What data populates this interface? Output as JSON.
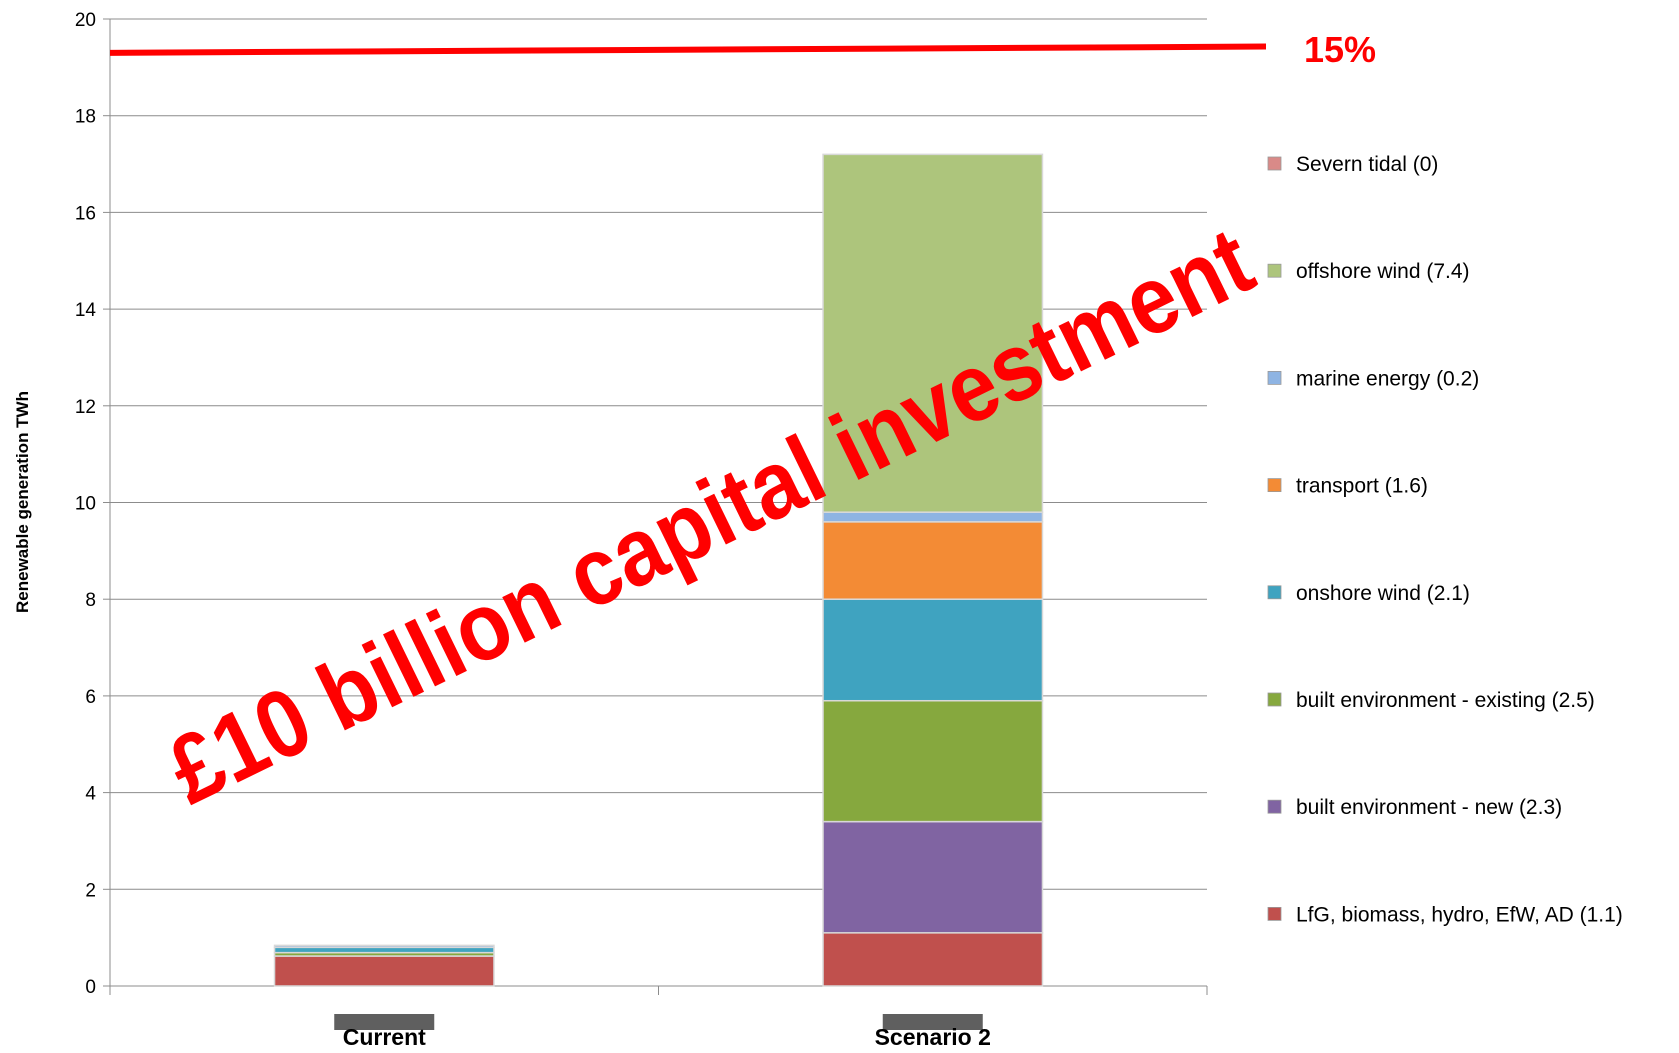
{
  "chart_data": {
    "type": "stacked_bar",
    "y_label": "Renewable generation TWh",
    "categories": [
      "Current",
      "Scenario 2"
    ],
    "series": [
      {
        "name": "LfG, biomass, hydro, EfW, AD (1.1)",
        "color": "#c0504d",
        "values": [
          0.62,
          1.1
        ]
      },
      {
        "name": "built environment - new (2.3)",
        "color": "#8064a2",
        "values": [
          0,
          2.3
        ]
      },
      {
        "name": "built environment - existing (2.5)",
        "color": "#86a83e",
        "values": [
          0.07,
          2.5
        ]
      },
      {
        "name": "onshore wind (2.1)",
        "color": "#3fa3c0",
        "values": [
          0.11,
          2.1
        ]
      },
      {
        "name": "transport (1.6)",
        "color": "#f38b35",
        "values": [
          0,
          1.6
        ]
      },
      {
        "name": "marine energy (0.2)",
        "color": "#8eb4e3",
        "values": [
          0.04,
          0.2
        ]
      },
      {
        "name": "offshore wind (7.4)",
        "color": "#adc57c",
        "values": [
          0,
          7.4
        ]
      },
      {
        "name": "Severn tidal (0)",
        "color": "#d98a88",
        "values": [
          0,
          0
        ]
      }
    ],
    "ylim": [
      0,
      20
    ],
    "yticks": [
      0,
      2,
      4,
      6,
      8,
      10,
      12,
      14,
      16,
      18,
      20
    ],
    "grid": true,
    "target_line": {
      "label": "15%",
      "color": "#ff0000",
      "values": [
        19.3,
        19.43
      ]
    },
    "annotation": "£10 billion capital investment"
  }
}
